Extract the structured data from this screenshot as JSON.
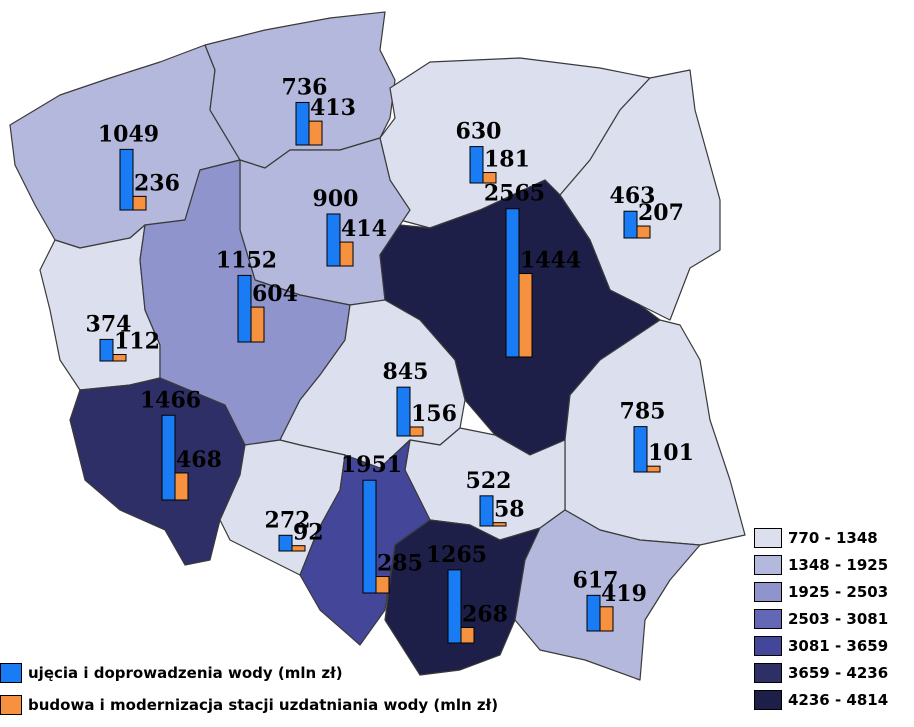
{
  "colors": {
    "series_a": "#1a7cf5",
    "series_b": "#f5913f",
    "scale": [
      "#dcdfee",
      "#b3b8dc",
      "#8f94cc",
      "#6466b6",
      "#44469a",
      "#2e2f66",
      "#1e1f48"
    ]
  },
  "chart_data": {
    "type": "choropleth-bar-map",
    "series": [
      {
        "name": "ujęcia i doprowadzenia wody (mln zł)"
      },
      {
        "name": "budowa i modernizacja stacji uzdatniania wody (mln zł)"
      }
    ],
    "regions": [
      {
        "id": "zachodniopomorskie",
        "class_index": 1,
        "a": 1049,
        "b": 236
      },
      {
        "id": "pomorskie",
        "class_index": 1,
        "a": 736,
        "b": 413
      },
      {
        "id": "warminsko-mazurskie",
        "class_index": 0,
        "a": 630,
        "b": 181
      },
      {
        "id": "podlaskie",
        "class_index": 0,
        "a": 463,
        "b": 207
      },
      {
        "id": "kujawsko-pomorskie",
        "class_index": 1,
        "a": 900,
        "b": 414
      },
      {
        "id": "lubuskie",
        "class_index": 0,
        "a": 374,
        "b": 112
      },
      {
        "id": "wielkopolskie",
        "class_index": 2,
        "a": 1152,
        "b": 604
      },
      {
        "id": "mazowieckie",
        "class_index": 6,
        "a": 2565,
        "b": 1444
      },
      {
        "id": "lodzkie",
        "class_index": 0,
        "a": 845,
        "b": 156
      },
      {
        "id": "lubelskie",
        "class_index": 0,
        "a": 785,
        "b": 101
      },
      {
        "id": "dolnoslaskie",
        "class_index": 5,
        "a": 1466,
        "b": 468
      },
      {
        "id": "opolskie",
        "class_index": 0,
        "a": 272,
        "b": 92
      },
      {
        "id": "swietokrzyskie",
        "class_index": 0,
        "a": 522,
        "b": 58
      },
      {
        "id": "slaskie",
        "class_index": 4,
        "a": 1951,
        "b": 285
      },
      {
        "id": "malopolskie",
        "class_index": 6,
        "a": 1265,
        "b": 268
      },
      {
        "id": "podkarpackie",
        "class_index": 1,
        "a": 617,
        "b": 419
      }
    ],
    "classes": [
      "770 - 1348",
      "1348 - 1925",
      "1925 - 2503",
      "2503 - 3081",
      "3081 - 3659",
      "3659 - 4236",
      "4236 - 4814"
    ]
  }
}
